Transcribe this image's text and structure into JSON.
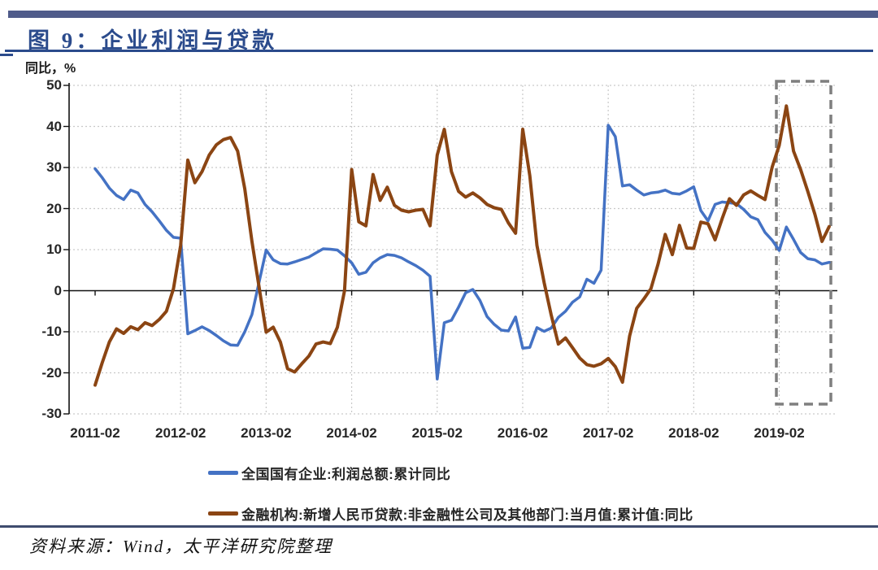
{
  "header": {
    "title": "图 9：企业利润与贷款"
  },
  "chart_data": {
    "type": "line",
    "title": "图 9：企业利润与贷款",
    "ylabel": "同比，%",
    "xlabel": "",
    "ylim": [
      -30,
      50
    ],
    "y_ticks": [
      50,
      40,
      30,
      20,
      10,
      0,
      -10,
      -20,
      -30
    ],
    "grid": "dotted horizontal and vertical gridlines, solid zero line",
    "legend_position": "bottom",
    "x_start_month": "2011-02",
    "x_end_month": "2019-09",
    "x_interval": "monthly",
    "x_tick_labels": [
      "2011-02",
      "2012-02",
      "2013-02",
      "2014-02",
      "2015-02",
      "2016-02",
      "2017-02",
      "2018-02",
      "2019-02"
    ],
    "x_tick_month_indices": [
      0,
      12,
      24,
      36,
      48,
      60,
      72,
      84,
      96
    ],
    "highlight_box": {
      "from": "2019-02",
      "to": "2019-09",
      "style": "gray dashed rectangle"
    },
    "series": [
      {
        "name": "全国国有企业:利润总额:累计同比",
        "color": "#4472C4",
        "values": [
          29.7,
          27.5,
          25.0,
          23.2,
          22.2,
          24.5,
          23.8,
          21.0,
          19.2,
          17.0,
          14.7,
          13.0,
          12.8,
          -10.5,
          -9.7,
          -8.8,
          -9.7,
          -10.9,
          -12.2,
          -13.2,
          -13.3,
          -10.0,
          -5.8,
          2.0,
          9.9,
          7.5,
          6.6,
          6.5,
          7.0,
          7.6,
          8.2,
          9.2,
          10.2,
          10.1,
          9.9,
          8.5,
          6.8,
          4.0,
          4.5,
          6.8,
          8.0,
          8.8,
          8.6,
          8.0,
          7.0,
          6.1,
          5.0,
          3.5,
          -21.5,
          -7.8,
          -7.2,
          -4.0,
          -0.5,
          0.3,
          -2.4,
          -6.3,
          -8.2,
          -9.6,
          -9.8,
          -6.4,
          -14.0,
          -13.8,
          -9.0,
          -9.9,
          -9.1,
          -6.5,
          -5.0,
          -2.8,
          -1.5,
          2.8,
          1.8,
          5.0,
          40.3,
          37.5,
          25.5,
          25.8,
          24.5,
          23.3,
          23.8,
          24.0,
          24.5,
          23.7,
          23.5,
          24.3,
          25.3,
          19.5,
          17.0,
          21.0,
          21.6,
          21.4,
          21.2,
          19.8,
          18.0,
          17.3,
          14.2,
          12.3,
          9.8,
          15.5,
          12.5,
          9.3,
          7.8,
          7.5,
          6.5,
          6.9
        ]
      },
      {
        "name": "金融机构:新增人民币贷款:非金融性公司及其他部门:当月值:累计值:同比",
        "color": "#8B4513",
        "values": [
          -23.0,
          -17.5,
          -12.5,
          -9.3,
          -10.4,
          -8.8,
          -9.5,
          -7.8,
          -8.5,
          -7.0,
          -5.0,
          0.5,
          11.0,
          31.8,
          26.3,
          29.0,
          33.0,
          35.5,
          36.8,
          37.3,
          34.0,
          24.8,
          12.0,
          1.0,
          -10.1,
          -8.9,
          -12.5,
          -19.0,
          -19.8,
          -17.8,
          -15.9,
          -13.0,
          -12.5,
          -12.9,
          -8.9,
          0.0,
          29.5,
          16.8,
          15.8,
          28.3,
          22.0,
          25.2,
          20.8,
          19.6,
          19.2,
          19.6,
          19.8,
          15.8,
          33.0,
          39.3,
          29.0,
          24.2,
          22.8,
          23.8,
          22.6,
          21.0,
          20.2,
          19.8,
          16.5,
          14.0,
          39.3,
          28.0,
          11.0,
          2.0,
          -5.9,
          -13.0,
          -11.5,
          -13.9,
          -16.4,
          -18.0,
          -18.4,
          -17.8,
          -16.5,
          -18.5,
          -22.3,
          -11.0,
          -4.3,
          -2.0,
          0.5,
          6.5,
          13.7,
          8.8,
          15.9,
          10.4,
          10.3,
          16.7,
          16.3,
          12.4,
          17.6,
          22.4,
          20.8,
          23.3,
          24.3,
          23.2,
          22.2,
          30.1,
          35.4,
          45.0,
          34.0,
          29.5,
          24.2,
          18.6,
          12.0,
          15.6
        ]
      }
    ]
  },
  "legend": {
    "entries": [
      "全国国有企业:利润总额:累计同比",
      "金融机构:新增人民币贷款:非金融性公司及其他部门:当月值:累计值:同比"
    ]
  },
  "footer": {
    "source": "资料来源：Wind，太平洋研究院整理"
  }
}
